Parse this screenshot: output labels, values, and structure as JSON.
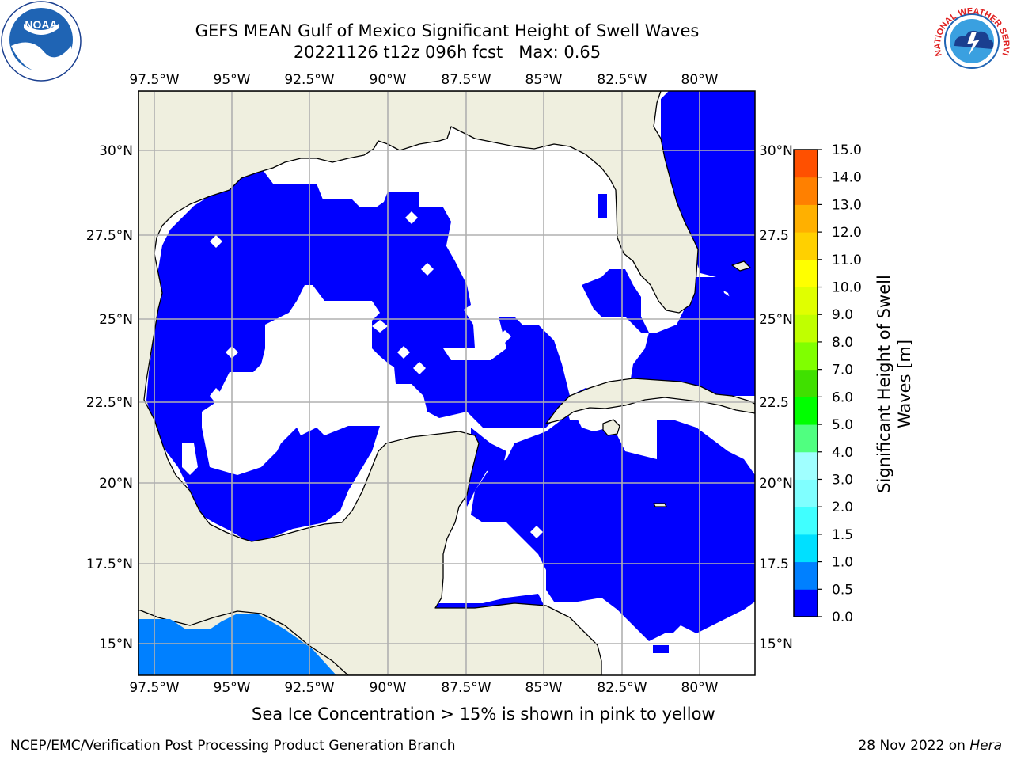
{
  "title": {
    "line1": "GEFS MEAN Gulf of Mexico Significant Height of Swell Waves",
    "line2": "20221126 t12z 096h fcst   Max: 0.65"
  },
  "map": {
    "lon_labels": [
      "97.5°W",
      "95°W",
      "92.5°W",
      "90°W",
      "87.5°W",
      "85°W",
      "82.5°W",
      "80°W"
    ],
    "lat_labels": [
      "30°N",
      "27.5°N",
      "25°N",
      "22.5°N",
      "20°N",
      "17.5°N",
      "15°N"
    ],
    "lat_labels_right": [
      "30°N",
      "27.5",
      "25°N",
      "22.5",
      "20°N",
      "17.5",
      "15°N"
    ],
    "land_color": "#efefdf",
    "water_color": "#0000ff",
    "low_color": "#ffffff"
  },
  "colorbar": {
    "label_line1": "Significant Height of Swell",
    "label_line2": "Waves [m]",
    "ticks": [
      "0.0",
      "0.5",
      "1.0",
      "1.5",
      "2.0",
      "3.0",
      "4.0",
      "5.0",
      "6.0",
      "7.0",
      "8.0",
      "9.0",
      "10.0",
      "11.0",
      "12.0",
      "13.0",
      "14.0",
      "15.0"
    ],
    "colors": [
      "#0000ff",
      "#0080ff",
      "#00e0ff",
      "#40ffff",
      "#80ffff",
      "#a0ffff",
      "#50ff80",
      "#00ff00",
      "#40e000",
      "#80ff00",
      "#c0ff00",
      "#e0ff00",
      "#ffff00",
      "#ffd000",
      "#ffb000",
      "#ff8000",
      "#ff5000",
      "#ff2000",
      "#ff0000"
    ]
  },
  "subtitle": "Sea Ice Concentration > 15% is shown in pink to yellow",
  "footer": {
    "left": "NCEP/EMC/Verification Post Processing Product Generation Branch",
    "right_prefix": "28 Nov 2022 on ",
    "right_machine": "Hera"
  },
  "logos": {
    "noaa_text": "NOAA",
    "nws_text": "NATIONAL WEATHER SERVICE"
  }
}
